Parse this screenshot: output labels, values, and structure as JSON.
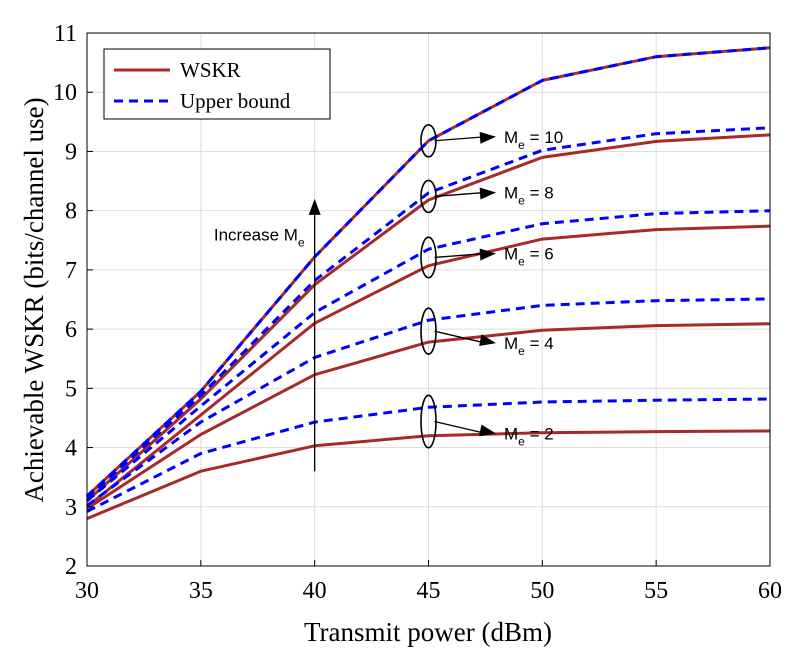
{
  "chart_data": {
    "type": "line",
    "xlabel": "Transmit power (dBm)",
    "ylabel": "Achievable WSKR (bits/channel use)",
    "x": [
      30,
      35,
      40,
      45,
      50,
      55,
      60
    ],
    "xlim": [
      30,
      60
    ],
    "ylim": [
      2,
      11
    ],
    "xticks": [
      "30",
      "35",
      "40",
      "45",
      "50",
      "55",
      "60"
    ],
    "yticks": [
      "2",
      "3",
      "4",
      "5",
      "6",
      "7",
      "8",
      "9",
      "10",
      "11"
    ],
    "grid": true,
    "legend": {
      "position": "top-left",
      "entries": [
        {
          "name": "WSKR",
          "color": "#a52a2a",
          "style": "solid"
        },
        {
          "name": "Upper bound",
          "color": "#0000ff",
          "style": "dashed"
        }
      ]
    },
    "groups": [
      {
        "label": "Me = 10",
        "wskr": [
          3.18,
          4.95,
          7.22,
          9.18,
          10.2,
          10.6,
          10.75
        ],
        "upper": [
          3.18,
          4.95,
          7.22,
          9.18,
          10.2,
          10.6,
          10.75
        ]
      },
      {
        "label": "Me = 8",
        "wskr": [
          3.1,
          4.82,
          6.75,
          8.18,
          8.9,
          9.17,
          9.28
        ],
        "upper": [
          3.15,
          4.88,
          6.82,
          8.3,
          9.02,
          9.3,
          9.4
        ]
      },
      {
        "label": "Me = 6",
        "wskr": [
          3.0,
          4.55,
          6.1,
          7.07,
          7.52,
          7.68,
          7.74
        ],
        "upper": [
          3.1,
          4.7,
          6.28,
          7.35,
          7.78,
          7.95,
          8.0
        ]
      },
      {
        "label": "Me = 4",
        "wskr": [
          2.97,
          4.22,
          5.23,
          5.78,
          5.98,
          6.06,
          6.09
        ],
        "upper": [
          3.02,
          4.43,
          5.52,
          6.15,
          6.4,
          6.48,
          6.51
        ]
      },
      {
        "label": "Me = 2",
        "wskr": [
          2.8,
          3.6,
          4.03,
          4.2,
          4.25,
          4.27,
          4.28
        ],
        "upper": [
          2.92,
          3.9,
          4.43,
          4.68,
          4.77,
          4.8,
          4.82
        ]
      }
    ],
    "annotations": {
      "increase": {
        "text": "Increase M",
        "sub": "e",
        "x": 40,
        "y_from": 3.6,
        "y_to": 8.2
      },
      "group_labels": [
        {
          "text": "M",
          "sub": "e",
          "rest": " = 10"
        },
        {
          "text": "M",
          "sub": "e",
          "rest": " = 8"
        },
        {
          "text": "M",
          "sub": "e",
          "rest": " = 6"
        },
        {
          "text": "M",
          "sub": "e",
          "rest": " = 4"
        },
        {
          "text": "M",
          "sub": "e",
          "rest": " = 2"
        }
      ]
    }
  }
}
